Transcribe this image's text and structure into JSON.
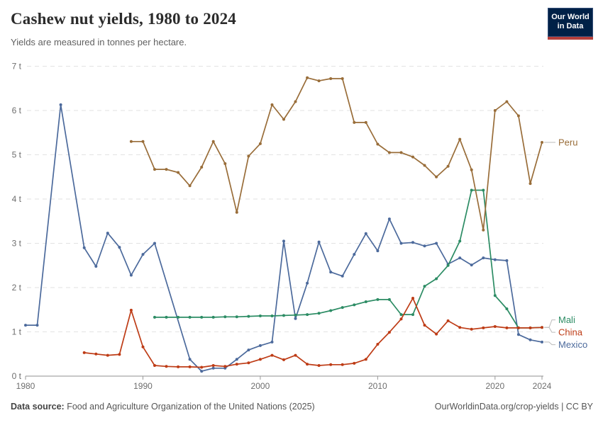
{
  "header": {
    "title": "Cashew nut yields, 1980 to 2024",
    "subtitle": "Yields are measured in tonnes per hectare."
  },
  "logo": {
    "line1": "Our World",
    "line2": "in Data",
    "bg_color": "#002147",
    "bar_color": "#b5403c"
  },
  "chart_data": {
    "type": "line",
    "title": "Cashew nut yields, 1980 to 2024",
    "ylabel": "tonnes per hectare",
    "unit_suffix": " t",
    "x_range": [
      1980,
      2024
    ],
    "y_range": [
      0,
      7
    ],
    "x_ticks": [
      1980,
      1990,
      2000,
      2010,
      2020,
      2024
    ],
    "y_ticks": [
      0,
      1,
      2,
      3,
      4,
      5,
      6,
      7
    ],
    "grid": "horizontal-dashed",
    "legend_position": "right of line ends",
    "axis_color": "#8f8f8f",
    "grid_color": "#e2e2e2",
    "tick_label_color": "#6e6e6e",
    "connector_color": "#bbbbbb",
    "series": [
      {
        "name": "Peru",
        "color": "#996d39",
        "points": [
          [
            1989,
            5.3
          ],
          [
            1990,
            5.3
          ],
          [
            1991,
            4.67
          ],
          [
            1992,
            4.67
          ],
          [
            1993,
            4.6
          ],
          [
            1994,
            4.3
          ],
          [
            1995,
            4.72
          ],
          [
            1996,
            5.3
          ],
          [
            1997,
            4.8
          ],
          [
            1998,
            3.7
          ],
          [
            1999,
            4.97
          ],
          [
            2000,
            5.25
          ],
          [
            2001,
            6.13
          ],
          [
            2002,
            5.8
          ],
          [
            2003,
            6.2
          ],
          [
            2004,
            6.74
          ],
          [
            2005,
            6.67
          ],
          [
            2006,
            6.72
          ],
          [
            2007,
            6.72
          ],
          [
            2008,
            5.73
          ],
          [
            2009,
            5.73
          ],
          [
            2010,
            5.24
          ],
          [
            2011,
            5.05
          ],
          [
            2012,
            5.05
          ],
          [
            2013,
            4.95
          ],
          [
            2014,
            4.76
          ],
          [
            2015,
            4.5
          ],
          [
            2016,
            4.74
          ],
          [
            2017,
            5.35
          ],
          [
            2018,
            4.66
          ],
          [
            2019,
            3.3
          ],
          [
            2020,
            6.0
          ],
          [
            2021,
            6.2
          ],
          [
            2022,
            5.88
          ],
          [
            2023,
            4.35
          ],
          [
            2024,
            5.28
          ]
        ]
      },
      {
        "name": "Mali",
        "color": "#2c8c64",
        "points": [
          [
            1991,
            1.33
          ],
          [
            1992,
            1.33
          ],
          [
            1993,
            1.33
          ],
          [
            1994,
            1.33
          ],
          [
            1995,
            1.33
          ],
          [
            1996,
            1.33
          ],
          [
            1997,
            1.34
          ],
          [
            1998,
            1.34
          ],
          [
            1999,
            1.35
          ],
          [
            2000,
            1.36
          ],
          [
            2001,
            1.36
          ],
          [
            2002,
            1.37
          ],
          [
            2003,
            1.38
          ],
          [
            2004,
            1.39
          ],
          [
            2005,
            1.42
          ],
          [
            2006,
            1.48
          ],
          [
            2007,
            1.55
          ],
          [
            2008,
            1.61
          ],
          [
            2009,
            1.68
          ],
          [
            2010,
            1.73
          ],
          [
            2011,
            1.73
          ],
          [
            2012,
            1.39
          ],
          [
            2013,
            1.39
          ],
          [
            2014,
            2.03
          ],
          [
            2015,
            2.2
          ],
          [
            2016,
            2.5
          ],
          [
            2017,
            3.05
          ],
          [
            2018,
            4.2
          ],
          [
            2019,
            4.2
          ],
          [
            2020,
            1.82
          ],
          [
            2021,
            1.52
          ],
          [
            2022,
            1.09
          ],
          [
            2023,
            1.09
          ],
          [
            2024,
            1.1
          ]
        ]
      },
      {
        "name": "China",
        "color": "#be3c16",
        "points": [
          [
            1985,
            0.53
          ],
          [
            1986,
            0.5
          ],
          [
            1987,
            0.47
          ],
          [
            1988,
            0.49
          ],
          [
            1989,
            1.49
          ],
          [
            1990,
            0.66
          ],
          [
            1991,
            0.24
          ],
          [
            1992,
            0.22
          ],
          [
            1993,
            0.21
          ],
          [
            1994,
            0.21
          ],
          [
            1995,
            0.2
          ],
          [
            1996,
            0.24
          ],
          [
            1997,
            0.22
          ],
          [
            1998,
            0.27
          ],
          [
            1999,
            0.3
          ],
          [
            2000,
            0.38
          ],
          [
            2001,
            0.47
          ],
          [
            2002,
            0.37
          ],
          [
            2003,
            0.47
          ],
          [
            2004,
            0.27
          ],
          [
            2005,
            0.24
          ],
          [
            2006,
            0.26
          ],
          [
            2007,
            0.26
          ],
          [
            2008,
            0.29
          ],
          [
            2009,
            0.38
          ],
          [
            2010,
            0.72
          ],
          [
            2011,
            0.99
          ],
          [
            2012,
            1.29
          ],
          [
            2013,
            1.76
          ],
          [
            2014,
            1.15
          ],
          [
            2015,
            0.95
          ],
          [
            2016,
            1.25
          ],
          [
            2017,
            1.1
          ],
          [
            2018,
            1.06
          ],
          [
            2019,
            1.09
          ],
          [
            2020,
            1.12
          ],
          [
            2021,
            1.09
          ],
          [
            2022,
            1.09
          ],
          [
            2023,
            1.09
          ],
          [
            2024,
            1.1
          ]
        ]
      },
      {
        "name": "Mexico",
        "color": "#4c6a9c",
        "points": [
          [
            1980,
            1.15
          ],
          [
            1981,
            1.15
          ],
          [
            1983,
            6.13
          ],
          [
            1985,
            2.9
          ],
          [
            1986,
            2.48
          ],
          [
            1987,
            3.23
          ],
          [
            1988,
            2.91
          ],
          [
            1989,
            2.28
          ],
          [
            1990,
            2.75
          ],
          [
            1991,
            3.0
          ],
          [
            1994,
            0.38
          ],
          [
            1995,
            0.11
          ],
          [
            1996,
            0.18
          ],
          [
            1997,
            0.18
          ],
          [
            1998,
            0.38
          ],
          [
            1999,
            0.59
          ],
          [
            2000,
            0.69
          ],
          [
            2001,
            0.77
          ],
          [
            2002,
            3.05
          ],
          [
            2003,
            1.3
          ],
          [
            2004,
            2.1
          ],
          [
            2005,
            3.03
          ],
          [
            2006,
            2.35
          ],
          [
            2007,
            2.26
          ],
          [
            2008,
            2.75
          ],
          [
            2009,
            3.22
          ],
          [
            2010,
            2.83
          ],
          [
            2011,
            3.55
          ],
          [
            2012,
            3.0
          ],
          [
            2013,
            3.02
          ],
          [
            2014,
            2.94
          ],
          [
            2015,
            3.0
          ],
          [
            2016,
            2.53
          ],
          [
            2017,
            2.67
          ],
          [
            2018,
            2.51
          ],
          [
            2019,
            2.67
          ],
          [
            2020,
            2.63
          ],
          [
            2021,
            2.61
          ],
          [
            2022,
            0.94
          ],
          [
            2023,
            0.82
          ],
          [
            2024,
            0.77
          ]
        ]
      }
    ]
  },
  "footer": {
    "datasource_label": "Data source:",
    "datasource_text": " Food and Agriculture Organization of the United Nations (2025)",
    "license_text": "OurWorldinData.org/crop-yields | CC BY"
  }
}
